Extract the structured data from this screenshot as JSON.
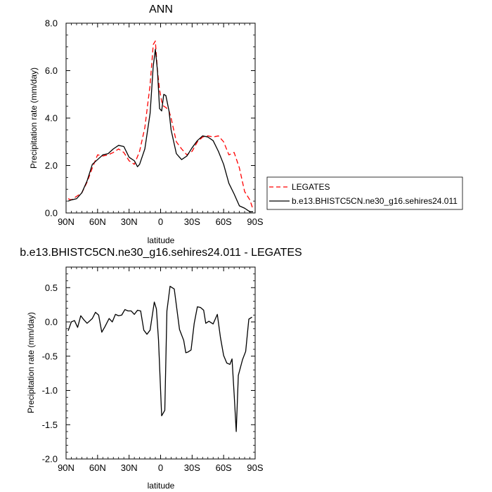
{
  "chart_data": [
    {
      "type": "line",
      "title": "ANN",
      "xlabel": "latitude",
      "ylabel": "Precipitation rate (mm/day)",
      "xlim": [
        -90,
        90
      ],
      "ylim": [
        0,
        8
      ],
      "xticks": [
        -90,
        -60,
        -30,
        0,
        30,
        60,
        90
      ],
      "xtick_labels": [
        "90N",
        "60N",
        "30N",
        "0",
        "30S",
        "60S",
        "90S"
      ],
      "yticks": [
        0,
        2,
        4,
        6,
        8
      ],
      "ytick_labels": [
        "0.0",
        "2.0",
        "4.0",
        "6.0",
        "8.0"
      ],
      "legend_position": "right",
      "series": [
        {
          "name": "LEGATES",
          "color": "#ff0000",
          "dash": "dashed",
          "x": [
            -88,
            -85,
            -80,
            -75,
            -70,
            -65,
            -60,
            -55,
            -50,
            -45,
            -40,
            -35,
            -30,
            -25,
            -20,
            -15,
            -10,
            -7,
            -5,
            -3,
            -1,
            1,
            3,
            5,
            8,
            10,
            15,
            20,
            25,
            30,
            35,
            40,
            45,
            50,
            55,
            60,
            65,
            70,
            75,
            80,
            85,
            88
          ],
          "y": [
            0.6,
            0.55,
            0.7,
            0.85,
            1.3,
            1.9,
            2.45,
            2.4,
            2.45,
            2.55,
            2.7,
            2.55,
            2.2,
            2.05,
            2.6,
            3.6,
            5.4,
            7.1,
            7.25,
            6.0,
            5.2,
            4.7,
            4.5,
            4.45,
            4.3,
            4.0,
            3.0,
            2.7,
            2.45,
            2.6,
            3.0,
            3.2,
            3.25,
            3.2,
            3.25,
            3.0,
            2.45,
            2.55,
            1.9,
            0.9,
            0.55,
            0.15
          ]
        },
        {
          "name": "b.e13.BHISTC5CN.ne30_g16.sehires24.011",
          "color": "#000000",
          "dash": "solid",
          "x": [
            -88,
            -85,
            -80,
            -75,
            -70,
            -65,
            -60,
            -55,
            -50,
            -45,
            -40,
            -35,
            -30,
            -25,
            -22,
            -20,
            -15,
            -10,
            -7,
            -5,
            -3,
            -1,
            1,
            3,
            5,
            8,
            10,
            15,
            20,
            25,
            30,
            35,
            40,
            45,
            50,
            55,
            60,
            65,
            70,
            75,
            80,
            85,
            88
          ],
          "y": [
            0.5,
            0.55,
            0.6,
            0.85,
            1.35,
            2.05,
            2.25,
            2.45,
            2.5,
            2.7,
            2.85,
            2.8,
            2.35,
            2.2,
            1.95,
            2.05,
            2.7,
            4.2,
            6.2,
            6.9,
            6.0,
            4.4,
            4.3,
            5.0,
            4.95,
            4.3,
            3.5,
            2.5,
            2.25,
            2.4,
            2.75,
            3.05,
            3.25,
            3.2,
            3.05,
            2.6,
            2.05,
            1.25,
            0.8,
            0.3,
            0.2,
            0.05,
            0.05
          ]
        }
      ]
    },
    {
      "type": "line",
      "title": "b.e13.BHISTC5CN.ne30_g16.sehires24.011 - LEGATES",
      "xlabel": "latitude",
      "ylabel": "Precipitation rate (mm/day)",
      "xlim": [
        -90,
        90
      ],
      "ylim": [
        -2.0,
        0.8
      ],
      "xticks": [
        -90,
        -60,
        -30,
        0,
        30,
        60,
        90
      ],
      "xtick_labels": [
        "90N",
        "60N",
        "30N",
        "0",
        "30S",
        "60S",
        "90S"
      ],
      "yticks": [
        -2.0,
        -1.5,
        -1.0,
        -0.5,
        0.0,
        0.5
      ],
      "ytick_labels": [
        "-2.0",
        "-1.5",
        "-1.0",
        "-0.5",
        "0.0",
        "0.5"
      ],
      "series": [
        {
          "color": "#000000",
          "dash": "solid",
          "x": [
            -88,
            -85,
            -82,
            -79,
            -76,
            -73,
            -70,
            -65,
            -62,
            -59,
            -56,
            -53,
            -49,
            -46,
            -43,
            -40,
            -37,
            -34,
            -31,
            -28,
            -25,
            -22,
            -19,
            -16,
            -13,
            -10,
            -6,
            -4,
            -2,
            1,
            4,
            6,
            9,
            13,
            18,
            22,
            24,
            26,
            29,
            32,
            35,
            38,
            41,
            43,
            46,
            50,
            54,
            57,
            60,
            63,
            66,
            68,
            70,
            72,
            74,
            78,
            81,
            84,
            87
          ],
          "y": [
            -0.13,
            0.0,
            0.02,
            -0.08,
            0.09,
            0.03,
            -0.02,
            0.05,
            0.14,
            0.1,
            -0.15,
            -0.07,
            0.05,
            0.0,
            0.11,
            0.09,
            0.1,
            0.18,
            0.16,
            0.16,
            0.11,
            0.17,
            0.16,
            -0.12,
            -0.18,
            -0.12,
            0.29,
            0.19,
            -0.26,
            -1.37,
            -1.29,
            0.16,
            0.52,
            0.48,
            -0.11,
            -0.27,
            -0.45,
            -0.44,
            -0.41,
            -0.02,
            0.22,
            0.21,
            0.17,
            -0.02,
            0.01,
            -0.03,
            0.11,
            -0.23,
            -0.49,
            -0.6,
            -0.62,
            -0.54,
            -1.05,
            -1.6,
            -0.78,
            -0.55,
            -0.43,
            0.04,
            0.07
          ]
        }
      ]
    }
  ],
  "legend": {
    "items": [
      {
        "label": "LEGATES",
        "color": "#ff0000",
        "dash": "dashed"
      },
      {
        "label": "b.e13.BHISTC5CN.ne30_g16.sehires24.011",
        "color": "#000000",
        "dash": "solid"
      }
    ]
  }
}
